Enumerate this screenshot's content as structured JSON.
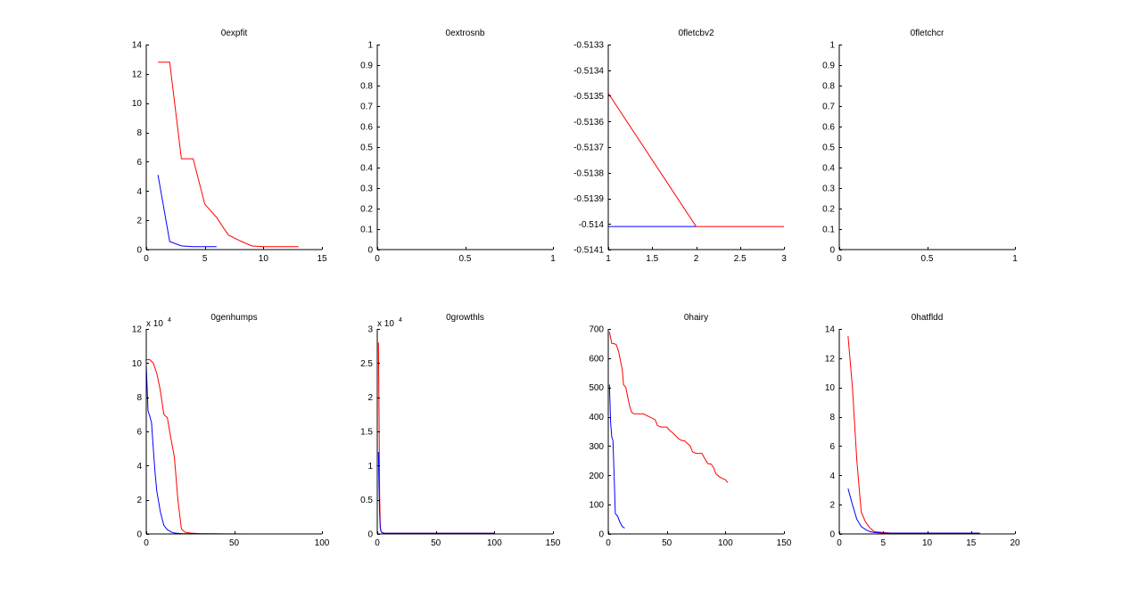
{
  "colors": {
    "red": "#ff0000",
    "blue": "#0000ff",
    "axis": "#000000"
  },
  "chart_data": [
    {
      "type": "line",
      "title": "0expfit",
      "xlim": [
        0,
        15
      ],
      "ylim": [
        0,
        14
      ],
      "xticks": [
        0,
        5,
        10,
        15
      ],
      "yticks": [
        0,
        2,
        4,
        6,
        8,
        10,
        12,
        14
      ],
      "xtick_labels": [
        "0",
        "5",
        "10",
        "15"
      ],
      "ytick_labels": [
        "0",
        "2",
        "4",
        "6",
        "8",
        "10",
        "12",
        "14"
      ],
      "exponent": "",
      "series": [
        {
          "color": "red",
          "x": [
            1,
            2,
            3,
            4,
            5,
            6,
            7,
            8,
            9,
            10,
            11,
            12,
            13
          ],
          "y": [
            12.8,
            12.8,
            6.2,
            6.2,
            3.1,
            2.2,
            1.0,
            0.6,
            0.25,
            0.2,
            0.2,
            0.2,
            0.2
          ]
        },
        {
          "color": "blue",
          "x": [
            1,
            2,
            3,
            4,
            5,
            6
          ],
          "y": [
            5.1,
            0.55,
            0.25,
            0.2,
            0.2,
            0.2
          ]
        }
      ]
    },
    {
      "type": "line",
      "title": "0extrosnb",
      "xlim": [
        0,
        1
      ],
      "ylim": [
        0,
        1
      ],
      "xticks": [
        0,
        0.5,
        1
      ],
      "yticks": [
        0,
        0.1,
        0.2,
        0.3,
        0.4,
        0.5,
        0.6,
        0.7,
        0.8,
        0.9,
        1
      ],
      "xtick_labels": [
        "0",
        "0.5",
        "1"
      ],
      "ytick_labels": [
        "0",
        "0.1",
        "0.2",
        "0.3",
        "0.4",
        "0.5",
        "0.6",
        "0.7",
        "0.8",
        "0.9",
        "1"
      ],
      "exponent": "",
      "series": []
    },
    {
      "type": "line",
      "title": "0fletcbv2",
      "xlim": [
        1,
        3
      ],
      "ylim": [
        -0.5141,
        -0.5133
      ],
      "xticks": [
        1,
        1.5,
        2,
        2.5,
        3
      ],
      "yticks": [
        -0.5141,
        -0.514,
        -0.5139,
        -0.5138,
        -0.5137,
        -0.5136,
        -0.5135,
        -0.5134,
        -0.5133
      ],
      "xtick_labels": [
        "1",
        "1.5",
        "2",
        "2.5",
        "3"
      ],
      "ytick_labels": [
        "-0.5141",
        "-0.514",
        "-0.5139",
        "-0.5138",
        "-0.5137",
        "-0.5136",
        "-0.5135",
        "-0.5134",
        "-0.5133"
      ],
      "exponent": "",
      "series": [
        {
          "color": "red",
          "x": [
            1,
            2,
            3
          ],
          "y": [
            -0.51349,
            -0.51401,
            -0.51401
          ]
        },
        {
          "color": "blue",
          "x": [
            1,
            2
          ],
          "y": [
            -0.51401,
            -0.51401
          ]
        }
      ]
    },
    {
      "type": "line",
      "title": "0fletchcr",
      "xlim": [
        0,
        1
      ],
      "ylim": [
        0,
        1
      ],
      "xticks": [
        0,
        0.5,
        1
      ],
      "yticks": [
        0,
        0.1,
        0.2,
        0.3,
        0.4,
        0.5,
        0.6,
        0.7,
        0.8,
        0.9,
        1
      ],
      "xtick_labels": [
        "0",
        "0.5",
        "1"
      ],
      "ytick_labels": [
        "0",
        "0.1",
        "0.2",
        "0.3",
        "0.4",
        "0.5",
        "0.6",
        "0.7",
        "0.8",
        "0.9",
        "1"
      ],
      "exponent": "",
      "series": []
    },
    {
      "type": "line",
      "title": "0genhumps",
      "xlim": [
        0,
        100
      ],
      "ylim": [
        0,
        12
      ],
      "xticks": [
        0,
        50,
        100
      ],
      "yticks": [
        0,
        2,
        4,
        6,
        8,
        10,
        12
      ],
      "xtick_labels": [
        "0",
        "50",
        "100"
      ],
      "ytick_labels": [
        "0",
        "2",
        "4",
        "6",
        "8",
        "10",
        "12"
      ],
      "exponent": "4",
      "series": [
        {
          "color": "red",
          "x": [
            0,
            2,
            4,
            6,
            8,
            10,
            12,
            14,
            16,
            18,
            20,
            22,
            25,
            30,
            40,
            60,
            83
          ],
          "y": [
            10.2,
            10.2,
            10.0,
            9.4,
            8.4,
            7.0,
            6.8,
            5.6,
            4.5,
            2.0,
            0.3,
            0.1,
            0.05,
            0.02,
            0.01,
            0.0,
            0.0
          ]
        },
        {
          "color": "blue",
          "x": [
            0,
            1,
            2,
            3,
            4,
            5,
            6,
            8,
            10,
            12,
            14,
            16,
            20,
            25,
            40,
            60
          ],
          "y": [
            9.9,
            7.2,
            6.9,
            6.5,
            5.0,
            3.6,
            2.5,
            1.3,
            0.5,
            0.25,
            0.12,
            0.05,
            0.02,
            0.01,
            0.0,
            0.0
          ]
        }
      ]
    },
    {
      "type": "line",
      "title": "0growthls",
      "xlim": [
        0,
        150
      ],
      "ylim": [
        0,
        3
      ],
      "xticks": [
        0,
        50,
        100,
        150
      ],
      "yticks": [
        0,
        0.5,
        1,
        1.5,
        2,
        2.5,
        3
      ],
      "xtick_labels": [
        "0",
        "50",
        "100",
        "150"
      ],
      "ytick_labels": [
        "0",
        "0.5",
        "1",
        "1.5",
        "2",
        "2.5",
        "3"
      ],
      "exponent": "4",
      "series": [
        {
          "color": "red",
          "x": [
            1,
            1.5,
            2,
            2.5,
            3,
            4,
            6,
            10,
            20,
            50,
            100
          ],
          "y": [
            2.8,
            1.8,
            0.6,
            0.15,
            0.05,
            0.02,
            0.01,
            0.01,
            0.01,
            0.01,
            0.01
          ]
        },
        {
          "color": "blue",
          "x": [
            1,
            1.5,
            2,
            2.5,
            3,
            4,
            6,
            10,
            20,
            50,
            100
          ],
          "y": [
            1.2,
            0.7,
            0.3,
            0.1,
            0.05,
            0.02,
            0.01,
            0.01,
            0.01,
            0.01,
            0.01
          ]
        }
      ]
    },
    {
      "type": "line",
      "title": "0hairy",
      "xlim": [
        0,
        150
      ],
      "ylim": [
        0,
        700
      ],
      "xticks": [
        0,
        50,
        100,
        150
      ],
      "yticks": [
        0,
        100,
        200,
        300,
        400,
        500,
        600,
        700
      ],
      "xtick_labels": [
        "0",
        "50",
        "100",
        "150"
      ],
      "ytick_labels": [
        "0",
        "100",
        "200",
        "300",
        "400",
        "500",
        "600",
        "700"
      ],
      "exponent": "",
      "series": [
        {
          "color": "red",
          "x": [
            1,
            2,
            3,
            5,
            7,
            9,
            10,
            12,
            13,
            15,
            17,
            18,
            20,
            22,
            25,
            28,
            30,
            35,
            40,
            42,
            45,
            50,
            52,
            55,
            60,
            62,
            65,
            70,
            72,
            75,
            80,
            82,
            85,
            88,
            90,
            92,
            95,
            97,
            100,
            102
          ],
          "y": [
            690,
            670,
            650,
            650,
            645,
            620,
            600,
            560,
            510,
            500,
            460,
            440,
            415,
            410,
            410,
            410,
            410,
            400,
            390,
            370,
            365,
            365,
            355,
            345,
            325,
            320,
            318,
            300,
            280,
            275,
            275,
            260,
            240,
            238,
            225,
            205,
            195,
            190,
            185,
            175
          ]
        },
        {
          "color": "blue",
          "x": [
            1,
            2,
            3,
            4,
            5,
            6,
            7,
            8,
            10,
            12,
            14
          ],
          "y": [
            510,
            380,
            330,
            320,
            200,
            70,
            65,
            60,
            40,
            25,
            20
          ]
        }
      ]
    },
    {
      "type": "line",
      "title": "0hatfldd",
      "xlim": [
        0,
        20
      ],
      "ylim": [
        0,
        14
      ],
      "xticks": [
        0,
        5,
        10,
        15,
        20
      ],
      "yticks": [
        0,
        2,
        4,
        6,
        8,
        10,
        12,
        14
      ],
      "xtick_labels": [
        "0",
        "5",
        "10",
        "15",
        "20"
      ],
      "ytick_labels": [
        "0",
        "2",
        "4",
        "6",
        "8",
        "10",
        "12",
        "14"
      ],
      "exponent": "",
      "series": [
        {
          "color": "red",
          "x": [
            1,
            1.5,
            2,
            2.5,
            3,
            3.5,
            4,
            5,
            6,
            8,
            10,
            12,
            14,
            16
          ],
          "y": [
            13.5,
            10.0,
            5.0,
            1.5,
            0.8,
            0.4,
            0.15,
            0.1,
            0.05,
            0.05,
            0.05,
            0.05,
            0.05,
            0.05
          ]
        },
        {
          "color": "blue",
          "x": [
            1,
            1.5,
            2,
            2.5,
            3,
            3.5,
            4,
            5,
            6,
            8,
            10,
            12,
            14,
            16
          ],
          "y": [
            3.1,
            2.0,
            1.0,
            0.5,
            0.3,
            0.15,
            0.1,
            0.05,
            0.05,
            0.05,
            0.05,
            0.05,
            0.05,
            0.05
          ]
        }
      ]
    }
  ]
}
